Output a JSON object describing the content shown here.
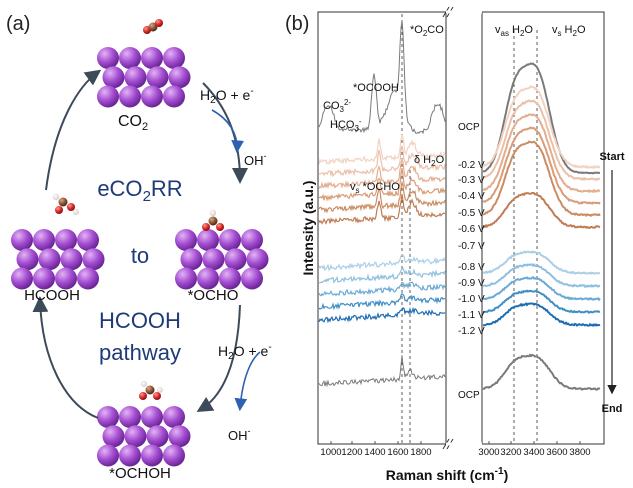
{
  "panel_a": {
    "label": "(a)",
    "center_lines": [
      "eCO",
      "2",
      "RR",
      "to",
      "HCOOH",
      "pathway"
    ],
    "species": {
      "co2": "CO",
      "co2_sub": "2",
      "ocho": "*OCHO",
      "ochoh": "*OCHOH",
      "hcooh": "HCOOH"
    },
    "reagents": {
      "h2o_e": "H",
      "h2o_sub": "2",
      "h2o_rest": "O + e",
      "minus": "-",
      "oh": "OH",
      "oh_minus": "-"
    },
    "colors": {
      "slab_purple": "#9b45c8",
      "arrow_dark": "#3c4a5a",
      "arrow_blue": "#2c62b0",
      "text_navy": "#1e3a78"
    }
  },
  "panel_b": {
    "label": "(b)",
    "ylabel": "Intensity (a.u.)",
    "xlabel_main": "Raman shift (cm",
    "xlabel_sup": "-1",
    "xlabel_end": ")",
    "x_ticks_left": [
      "1000",
      "1200",
      "1400",
      "1600",
      "1800"
    ],
    "x_ticks_right": [
      "3000",
      "3200",
      "3400",
      "3600",
      "3800"
    ],
    "annotations": {
      "o2co": "*O",
      "o2co_sub": "2",
      "o2co_rest": "CO",
      "ococoh": "*OCOOH",
      "co3": "CO",
      "co3_sub": "3",
      "co3_sup": "2-",
      "hco3": "HCO",
      "hco3_sub": "3",
      "hco3_sup": "-",
      "vs_ocho_v": "v",
      "vs_ocho_sub": "s",
      "vs_ocho_rest": " *OCHO",
      "delta_h2o": "δ H",
      "delta_sub": "2",
      "delta_rest": "O",
      "vas": "v",
      "vas_sub": "as",
      "vas_rest": " H",
      "vas_sub2": "2",
      "vas_rest2": "O",
      "vs": "v",
      "vs_sub": "s",
      "vs_rest": " H",
      "vs_sub2": "2",
      "vs_rest2": "O"
    },
    "side_labels": {
      "start": "Start",
      "end": "End"
    },
    "spectra": [
      {
        "label": "OCP",
        "color": "#7a7a7a"
      },
      {
        "label": "-0.2 V",
        "color": "#f2d3c3"
      },
      {
        "label": "-0.3 V",
        "color": "#ecc0a8"
      },
      {
        "label": "-0.4 V",
        "color": "#e3ad8f"
      },
      {
        "label": "-0.5 V",
        "color": "#d89c78"
      },
      {
        "label": "-0.6 V",
        "color": "#cc8c63"
      },
      {
        "label": "-0.7 V",
        "color": "#c07c52"
      },
      {
        "label": "-0.8 V",
        "color": "#aacfe6"
      },
      {
        "label": "-0.9 V",
        "color": "#8ebfe0"
      },
      {
        "label": "-1.0 V",
        "color": "#6aaad6"
      },
      {
        "label": "-1.1 V",
        "color": "#3f8fc7"
      },
      {
        "label": "-1.2 V",
        "color": "#1f6db3"
      },
      {
        "label": "OCP",
        "color": "#7a7a7a"
      }
    ]
  }
}
